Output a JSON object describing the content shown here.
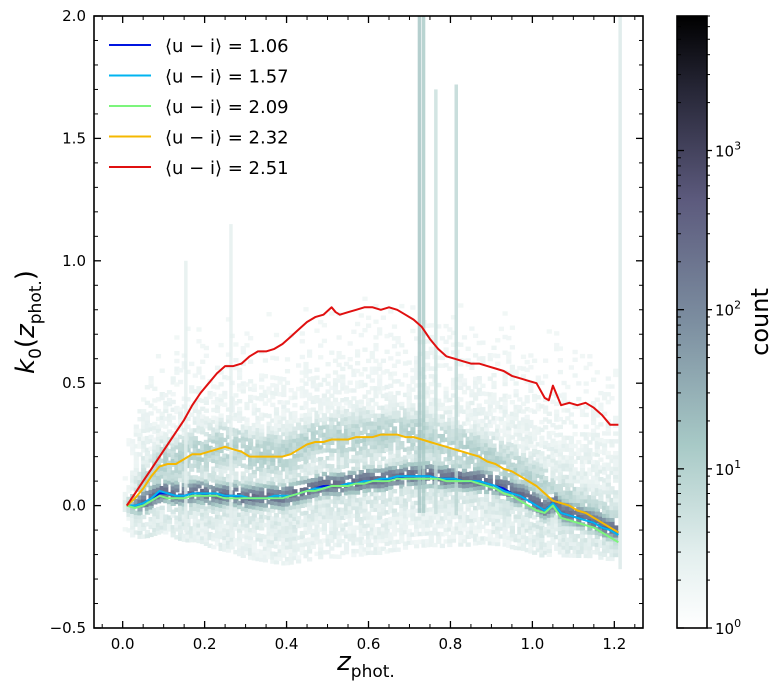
{
  "chart_data": {
    "type": "line",
    "subtype": "hexbin-density-with-median-lines",
    "xlabel": "z_phot.",
    "ylabel": "k0(z_phot.)",
    "xlim": [
      -0.07,
      1.27
    ],
    "ylim": [
      -0.5,
      2.0
    ],
    "xticks": [
      0.0,
      0.2,
      0.4,
      0.6,
      0.8,
      1.0,
      1.2
    ],
    "xtick_labels": [
      "0.0",
      "0.2",
      "0.4",
      "0.6",
      "0.8",
      "1.0",
      "1.2"
    ],
    "yticks": [
      -0.5,
      0.0,
      0.5,
      1.0,
      1.5,
      2.0
    ],
    "ytick_labels": [
      "−0.5",
      "0.0",
      "0.5",
      "1.0",
      "1.5",
      "2.0"
    ],
    "legend_position": "top-left",
    "colorbar": {
      "label": "count",
      "scale": "log",
      "range": [
        1,
        7000
      ],
      "ticks": [
        1,
        10,
        100,
        1000
      ],
      "tick_labels": [
        "10^0",
        "10^1",
        "10^2",
        "10^3"
      ],
      "colormap": "bone_r"
    },
    "series": [
      {
        "name": "⟨u − i⟩ = 1.06",
        "legend_prefix": "⟨u − i⟩ = ",
        "legend_value": "1.06",
        "color": "#0015e0",
        "x": [
          0.01,
          0.03,
          0.05,
          0.07,
          0.09,
          0.11,
          0.13,
          0.15,
          0.17,
          0.19,
          0.21,
          0.23,
          0.25,
          0.27,
          0.29,
          0.31,
          0.33,
          0.35,
          0.37,
          0.39,
          0.41,
          0.43,
          0.45,
          0.47,
          0.49,
          0.51,
          0.53,
          0.55,
          0.57,
          0.59,
          0.61,
          0.63,
          0.65,
          0.67,
          0.69,
          0.71,
          0.73,
          0.75,
          0.77,
          0.79,
          0.81,
          0.83,
          0.85,
          0.87,
          0.89,
          0.91,
          0.93,
          0.95,
          0.97,
          0.99,
          1.01,
          1.03,
          1.05,
          1.07,
          1.09,
          1.11,
          1.13,
          1.15,
          1.17,
          1.19,
          1.21
        ],
        "y": [
          0.0,
          0.0,
          0.01,
          0.03,
          0.05,
          0.05,
          0.04,
          0.04,
          0.05,
          0.05,
          0.04,
          0.04,
          0.04,
          0.04,
          0.03,
          0.03,
          0.03,
          0.03,
          0.03,
          0.03,
          0.04,
          0.05,
          0.06,
          0.07,
          0.08,
          0.08,
          0.08,
          0.09,
          0.09,
          0.1,
          0.1,
          0.1,
          0.11,
          0.11,
          0.12,
          0.12,
          0.12,
          0.12,
          0.11,
          0.11,
          0.11,
          0.1,
          0.1,
          0.1,
          0.09,
          0.08,
          0.07,
          0.05,
          0.04,
          0.02,
          0.0,
          -0.02,
          0.01,
          -0.03,
          -0.04,
          -0.05,
          -0.06,
          -0.07,
          -0.09,
          -0.1,
          -0.11
        ]
      },
      {
        "name": "⟨u − i⟩ = 1.57",
        "legend_prefix": "⟨u − i⟩ = ",
        "legend_value": "1.57",
        "color": "#00b4f0",
        "x": [
          0.01,
          0.03,
          0.05,
          0.07,
          0.09,
          0.11,
          0.13,
          0.15,
          0.17,
          0.19,
          0.21,
          0.23,
          0.25,
          0.27,
          0.29,
          0.31,
          0.33,
          0.35,
          0.37,
          0.39,
          0.41,
          0.43,
          0.45,
          0.47,
          0.49,
          0.51,
          0.53,
          0.55,
          0.57,
          0.59,
          0.61,
          0.63,
          0.65,
          0.67,
          0.69,
          0.71,
          0.73,
          0.75,
          0.77,
          0.79,
          0.81,
          0.83,
          0.85,
          0.87,
          0.89,
          0.91,
          0.93,
          0.95,
          0.97,
          0.99,
          1.01,
          1.03,
          1.05,
          1.07,
          1.09,
          1.11,
          1.13,
          1.15,
          1.17,
          1.19,
          1.21
        ],
        "y": [
          0.0,
          0.0,
          0.01,
          0.03,
          0.06,
          0.05,
          0.04,
          0.04,
          0.05,
          0.05,
          0.05,
          0.05,
          0.04,
          0.04,
          0.04,
          0.03,
          0.03,
          0.03,
          0.04,
          0.04,
          0.04,
          0.05,
          0.06,
          0.07,
          0.07,
          0.08,
          0.08,
          0.09,
          0.09,
          0.1,
          0.1,
          0.11,
          0.11,
          0.12,
          0.12,
          0.12,
          0.12,
          0.12,
          0.11,
          0.11,
          0.11,
          0.1,
          0.1,
          0.1,
          0.09,
          0.08,
          0.06,
          0.05,
          0.04,
          0.02,
          0.0,
          -0.02,
          0.01,
          -0.03,
          -0.04,
          -0.05,
          -0.06,
          -0.07,
          -0.09,
          -0.1,
          -0.12
        ]
      },
      {
        "name": "⟨u − i⟩ = 2.09",
        "legend_prefix": "⟨u − i⟩ = ",
        "legend_value": "2.09",
        "color": "#7cf57c",
        "x": [
          0.01,
          0.03,
          0.05,
          0.07,
          0.09,
          0.11,
          0.13,
          0.15,
          0.17,
          0.19,
          0.21,
          0.23,
          0.25,
          0.27,
          0.29,
          0.31,
          0.33,
          0.35,
          0.37,
          0.39,
          0.41,
          0.43,
          0.45,
          0.47,
          0.49,
          0.51,
          0.53,
          0.55,
          0.57,
          0.59,
          0.61,
          0.63,
          0.65,
          0.67,
          0.69,
          0.71,
          0.73,
          0.75,
          0.77,
          0.79,
          0.81,
          0.83,
          0.85,
          0.87,
          0.89,
          0.91,
          0.93,
          0.95,
          0.97,
          0.99,
          1.01,
          1.03,
          1.05,
          1.07,
          1.09,
          1.11,
          1.13,
          1.15,
          1.17,
          1.19,
          1.21
        ],
        "y": [
          0.0,
          -0.01,
          0.0,
          0.02,
          0.04,
          0.03,
          0.03,
          0.03,
          0.04,
          0.04,
          0.04,
          0.04,
          0.03,
          0.03,
          0.03,
          0.03,
          0.03,
          0.03,
          0.03,
          0.03,
          0.04,
          0.05,
          0.06,
          0.06,
          0.07,
          0.08,
          0.08,
          0.08,
          0.09,
          0.09,
          0.1,
          0.1,
          0.1,
          0.11,
          0.11,
          0.11,
          0.11,
          0.11,
          0.11,
          0.1,
          0.1,
          0.1,
          0.1,
          0.09,
          0.08,
          0.07,
          0.05,
          0.04,
          0.02,
          0.0,
          -0.02,
          -0.03,
          0.0,
          -0.05,
          -0.06,
          -0.07,
          -0.08,
          -0.09,
          -0.11,
          -0.13,
          -0.15
        ]
      },
      {
        "name": "⟨u − i⟩ = 2.32",
        "legend_prefix": "⟨u − i⟩ = ",
        "legend_value": "2.32",
        "color": "#f5b800",
        "x": [
          0.01,
          0.03,
          0.05,
          0.07,
          0.09,
          0.11,
          0.13,
          0.15,
          0.17,
          0.19,
          0.21,
          0.23,
          0.25,
          0.27,
          0.29,
          0.31,
          0.33,
          0.35,
          0.37,
          0.39,
          0.41,
          0.43,
          0.45,
          0.47,
          0.49,
          0.51,
          0.53,
          0.55,
          0.57,
          0.59,
          0.61,
          0.63,
          0.65,
          0.67,
          0.69,
          0.71,
          0.73,
          0.75,
          0.77,
          0.79,
          0.81,
          0.83,
          0.85,
          0.87,
          0.89,
          0.91,
          0.93,
          0.95,
          0.97,
          0.99,
          1.01,
          1.03,
          1.05,
          1.07,
          1.09,
          1.11,
          1.13,
          1.15,
          1.17,
          1.19,
          1.21
        ],
        "y": [
          0.0,
          0.03,
          0.07,
          0.12,
          0.16,
          0.17,
          0.17,
          0.19,
          0.21,
          0.21,
          0.22,
          0.23,
          0.24,
          0.23,
          0.22,
          0.2,
          0.2,
          0.2,
          0.2,
          0.2,
          0.21,
          0.23,
          0.25,
          0.26,
          0.26,
          0.27,
          0.27,
          0.27,
          0.28,
          0.28,
          0.28,
          0.29,
          0.29,
          0.29,
          0.28,
          0.28,
          0.27,
          0.26,
          0.25,
          0.24,
          0.23,
          0.22,
          0.21,
          0.2,
          0.18,
          0.17,
          0.15,
          0.14,
          0.12,
          0.1,
          0.08,
          0.05,
          0.02,
          0.01,
          0.0,
          -0.02,
          -0.03,
          -0.05,
          -0.07,
          -0.09,
          -0.11
        ]
      },
      {
        "name": "⟨u − i⟩ = 2.51",
        "legend_prefix": "⟨u − i⟩ = ",
        "legend_value": "2.51",
        "color": "#e01010",
        "x": [
          0.01,
          0.03,
          0.05,
          0.07,
          0.09,
          0.11,
          0.13,
          0.15,
          0.17,
          0.19,
          0.21,
          0.23,
          0.25,
          0.27,
          0.29,
          0.31,
          0.33,
          0.35,
          0.37,
          0.39,
          0.41,
          0.43,
          0.45,
          0.47,
          0.49,
          0.51,
          0.52,
          0.53,
          0.55,
          0.57,
          0.59,
          0.61,
          0.63,
          0.65,
          0.67,
          0.69,
          0.71,
          0.73,
          0.75,
          0.77,
          0.79,
          0.81,
          0.83,
          0.85,
          0.87,
          0.89,
          0.91,
          0.93,
          0.95,
          0.97,
          0.99,
          1.01,
          1.03,
          1.04,
          1.05,
          1.06,
          1.07,
          1.09,
          1.11,
          1.13,
          1.15,
          1.17,
          1.19,
          1.21
        ],
        "y": [
          0.0,
          0.05,
          0.1,
          0.15,
          0.2,
          0.25,
          0.3,
          0.35,
          0.41,
          0.46,
          0.5,
          0.54,
          0.57,
          0.57,
          0.58,
          0.61,
          0.63,
          0.63,
          0.64,
          0.66,
          0.69,
          0.72,
          0.75,
          0.77,
          0.78,
          0.81,
          0.79,
          0.78,
          0.79,
          0.8,
          0.81,
          0.81,
          0.8,
          0.81,
          0.8,
          0.78,
          0.76,
          0.73,
          0.68,
          0.64,
          0.61,
          0.6,
          0.59,
          0.58,
          0.58,
          0.57,
          0.56,
          0.55,
          0.53,
          0.52,
          0.51,
          0.5,
          0.44,
          0.43,
          0.49,
          0.45,
          0.41,
          0.42,
          0.41,
          0.42,
          0.4,
          0.37,
          0.33,
          0.33
        ]
      }
    ]
  }
}
